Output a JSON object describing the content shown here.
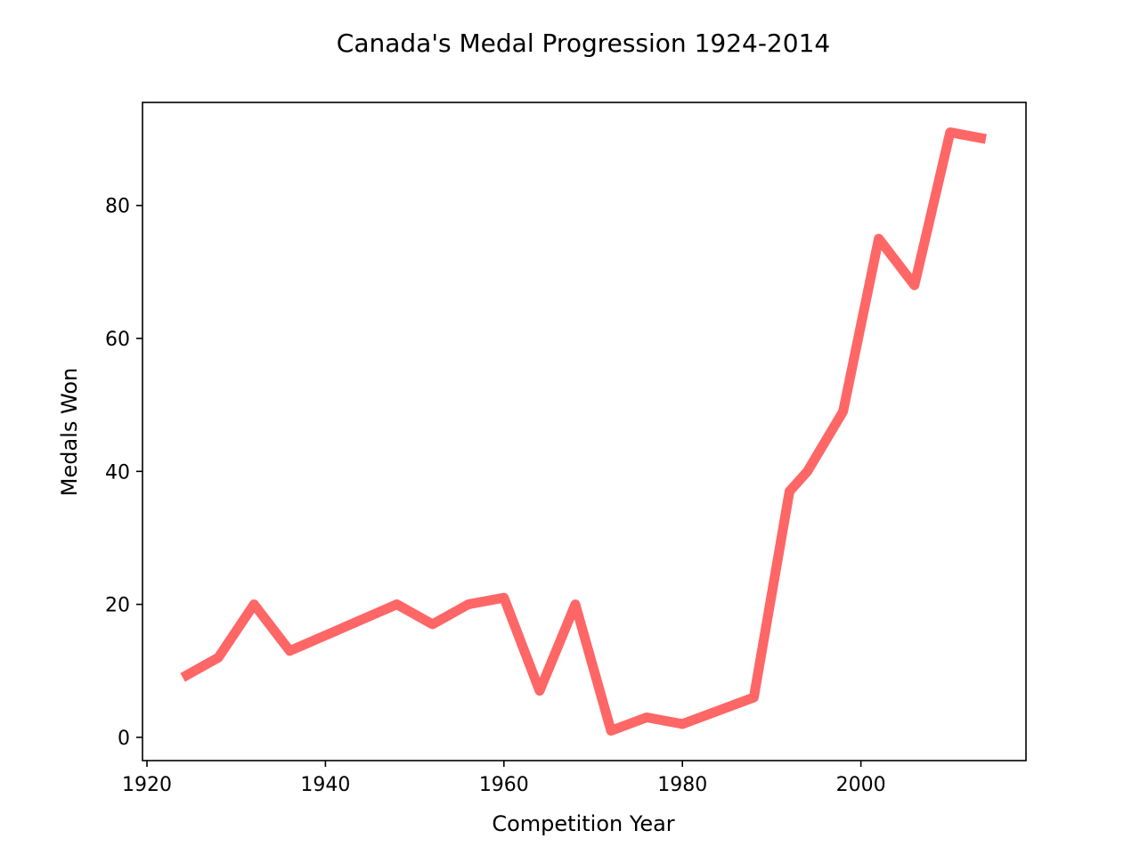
{
  "chart_data": {
    "type": "line",
    "title": "Canada's Medal Progression 1924-2014",
    "xlabel": "Competition Year",
    "ylabel": "Medals Won",
    "xlim": [
      1919.5,
      2018.5
    ],
    "ylim": [
      -3.5,
      95.5
    ],
    "xticks": [
      1920,
      1940,
      1960,
      1980,
      2000
    ],
    "yticks": [
      0,
      20,
      40,
      60,
      80
    ],
    "grid": false,
    "line_color": "#ff6666",
    "series": [
      {
        "x": [
          1924,
          1928,
          1932,
          1936,
          1948,
          1952,
          1956,
          1960,
          1964,
          1968,
          1972,
          1976,
          1980,
          1988,
          1992,
          1994,
          1998,
          2002,
          2006,
          2010,
          2014
        ],
        "values": [
          9,
          12,
          20,
          13,
          20,
          17,
          20,
          21,
          7,
          20,
          1,
          3,
          2,
          6,
          37,
          40,
          49,
          75,
          68,
          91,
          90
        ]
      }
    ]
  }
}
